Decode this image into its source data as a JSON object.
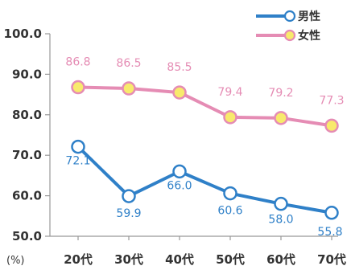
{
  "chart_data": {
    "type": "line",
    "categories": [
      "20代",
      "30代",
      "40代",
      "50代",
      "60代",
      "70代"
    ],
    "series": [
      {
        "name": "男性",
        "values": [
          72.1,
          59.9,
          66.0,
          60.6,
          58.0,
          55.8
        ],
        "line_color": "#2f80c8",
        "marker_fill": "#ffffff",
        "label_color": "#2f80c8"
      },
      {
        "name": "女性",
        "values": [
          86.8,
          86.5,
          85.5,
          79.4,
          79.2,
          77.3
        ],
        "line_color": "#e58cb4",
        "marker_fill": "#f8ea6c",
        "label_color": "#e58cb4"
      }
    ],
    "ylim": [
      50.0,
      100.0
    ],
    "yticks": [
      "50.0",
      "60.0",
      "70.0",
      "80.0",
      "90.0",
      "100.0"
    ],
    "unit_label": "(%)",
    "legend_position": "top-right",
    "grid": false
  }
}
